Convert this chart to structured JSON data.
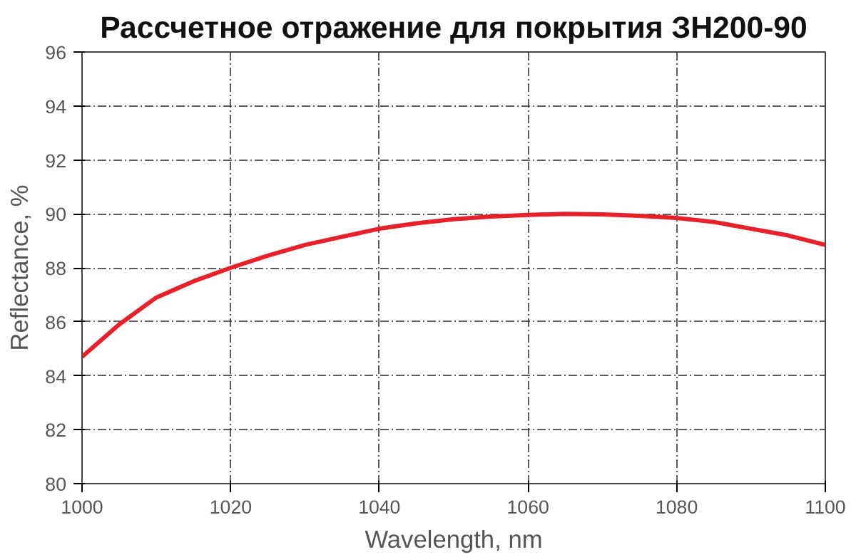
{
  "chart_data": {
    "type": "line",
    "title": "Рассчетное отражение для покрытия ЗН200-90",
    "xlabel": "Wavelength, nm",
    "ylabel": "Reflectance, %",
    "x": [
      1000,
      1005,
      1010,
      1015,
      1020,
      1025,
      1030,
      1035,
      1040,
      1045,
      1050,
      1055,
      1060,
      1065,
      1070,
      1075,
      1080,
      1085,
      1090,
      1095,
      1100
    ],
    "series": [
      {
        "color": "#e8202a",
        "values": [
          84.7,
          85.9,
          86.9,
          87.5,
          88.0,
          88.45,
          88.85,
          89.15,
          89.45,
          89.65,
          89.8,
          89.9,
          89.96,
          90.0,
          89.98,
          89.93,
          89.85,
          89.7,
          89.45,
          89.2,
          88.85
        ]
      }
    ],
    "xlim": [
      1000,
      1100
    ],
    "ylim": [
      80,
      96
    ],
    "xticks": [
      1000,
      1020,
      1040,
      1060,
      1080,
      1100
    ],
    "yticks": [
      80,
      82,
      84,
      86,
      88,
      90,
      92,
      94,
      96
    ],
    "grid": true,
    "marker": "none",
    "line_style": "solid"
  }
}
